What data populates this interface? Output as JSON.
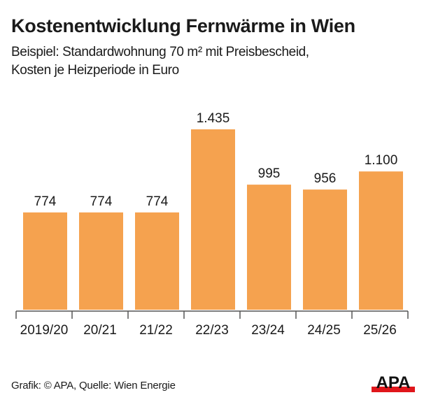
{
  "header": {
    "title": "Kostenentwicklung Fernwärme in Wien",
    "subtitle_line1": "Beispiel: Standardwohnung 70 m² mit Preisbescheid,",
    "subtitle_line2": "Kosten je Heizperiode in Euro"
  },
  "footer": {
    "source": "Grafik: © APA, Quelle: Wien Energie",
    "logo_text": "APA"
  },
  "colors": {
    "bar": "#f5a24f",
    "axis": "#555555",
    "logo_red": "#e0161b"
  },
  "chart_data": {
    "type": "bar",
    "title": "Kostenentwicklung Fernwärme in Wien",
    "subtitle": "Beispiel: Standardwohnung 70 m² mit Preisbescheid, Kosten je Heizperiode in Euro",
    "xlabel": "",
    "ylabel": "Euro",
    "categories": [
      "2019/20",
      "20/21",
      "21/22",
      "22/23",
      "23/24",
      "24/25",
      "25/26"
    ],
    "values": [
      774,
      774,
      774,
      1435,
      995,
      956,
      1100
    ],
    "value_labels": [
      "774",
      "774",
      "774",
      "1.435",
      "995",
      "956",
      "1.100"
    ],
    "ylim": [
      0,
      1435
    ],
    "grid": false,
    "legend": null
  }
}
